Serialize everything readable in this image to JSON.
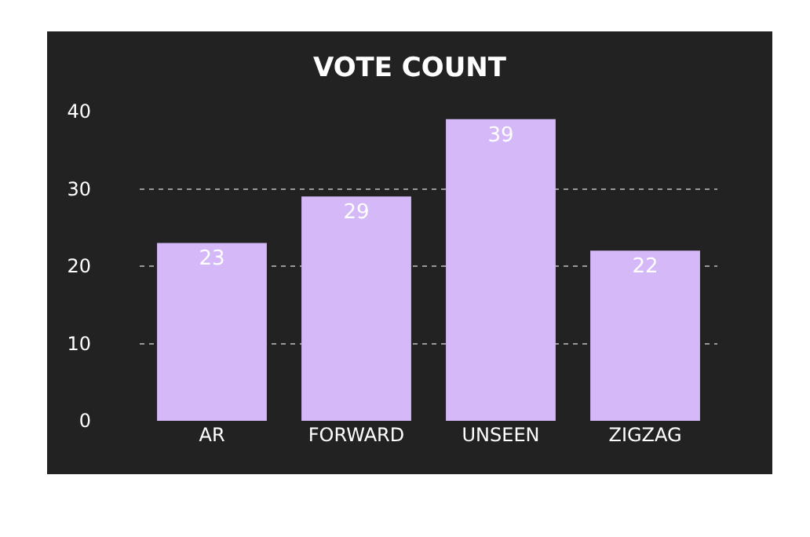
{
  "chart_data": {
    "type": "bar",
    "title": "VOTE COUNT",
    "categories": [
      "AR",
      "FORWARD",
      "UNSEEN",
      "ZIGZAG"
    ],
    "values": [
      23,
      29,
      39,
      22
    ],
    "color": "#d4b8f7",
    "ylim": [
      0,
      40
    ],
    "yticks": [
      0,
      10,
      20,
      30,
      40
    ],
    "grid": "y",
    "data_labels": true
  }
}
